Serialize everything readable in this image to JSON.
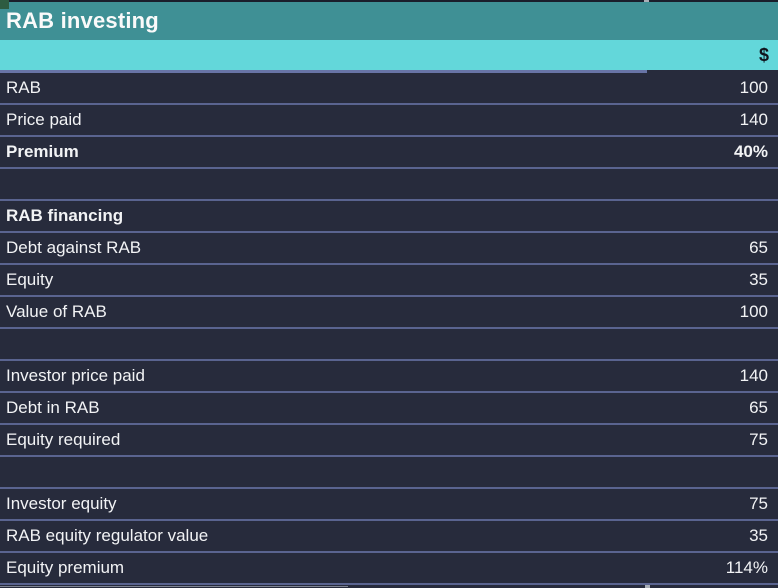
{
  "header": {
    "title": "RAB investing",
    "currency_label": "$"
  },
  "colors": {
    "title_band": "#3F9095",
    "currency_band": "#63D7DA",
    "row_background": "#272B3C",
    "gridline": "#5A6490",
    "header_underline": "#6874A6",
    "corner_marker_green": "#2E5C41",
    "text": "#F2F3F5"
  },
  "table": {
    "rows": [
      {
        "label": "RAB",
        "value": "100",
        "bold": false,
        "spacer": false
      },
      {
        "label": "Price paid",
        "value": "140",
        "bold": false,
        "spacer": false
      },
      {
        "label": "Premium",
        "value": "40%",
        "bold": true,
        "spacer": false
      },
      {
        "label": "",
        "value": "",
        "bold": false,
        "spacer": true
      },
      {
        "label": "RAB financing",
        "value": "",
        "bold": true,
        "spacer": false
      },
      {
        "label": "Debt against RAB",
        "value": "65",
        "bold": false,
        "spacer": false
      },
      {
        "label": "Equity",
        "value": "35",
        "bold": false,
        "spacer": false
      },
      {
        "label": "Value of RAB",
        "value": "100",
        "bold": false,
        "spacer": false
      },
      {
        "label": "",
        "value": "",
        "bold": false,
        "spacer": true
      },
      {
        "label": "Investor price paid",
        "value": "140",
        "bold": false,
        "spacer": false
      },
      {
        "label": "Debt in RAB",
        "value": "65",
        "bold": false,
        "spacer": false
      },
      {
        "label": "Equity required",
        "value": "75",
        "bold": false,
        "spacer": false
      },
      {
        "label": "",
        "value": "",
        "bold": false,
        "spacer": true
      },
      {
        "label": "Investor equity",
        "value": "75",
        "bold": false,
        "spacer": false
      },
      {
        "label": "RAB equity regulator value",
        "value": "35",
        "bold": false,
        "spacer": false
      },
      {
        "label": "Equity premium",
        "value": "114%",
        "bold": false,
        "spacer": false
      }
    ]
  }
}
